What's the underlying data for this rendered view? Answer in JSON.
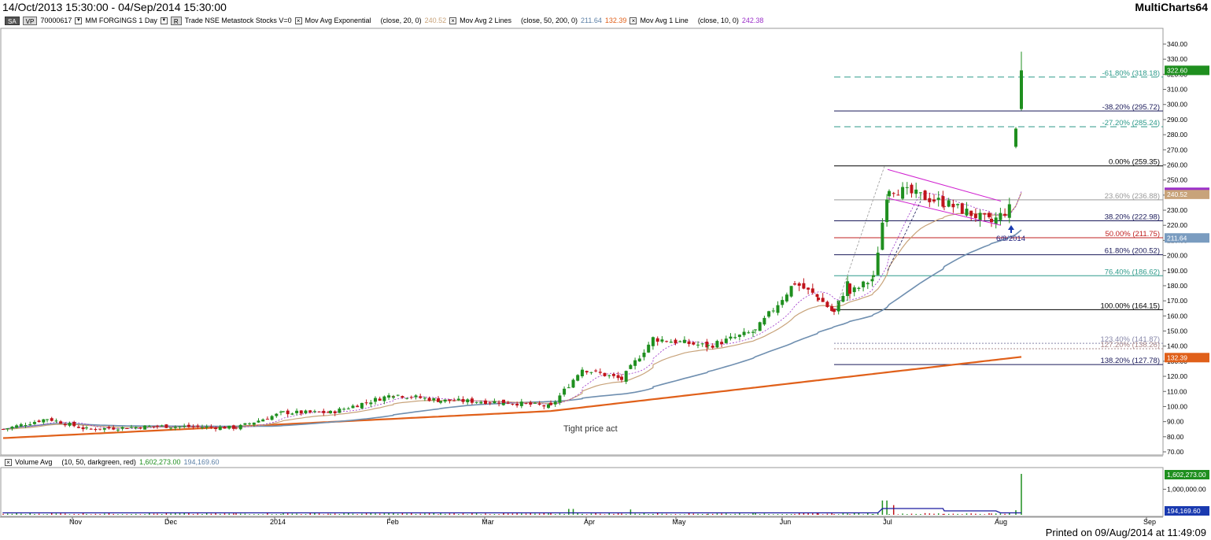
{
  "title": {
    "range": "14/Oct/2013 15:30:00 - 04/Sep/2014 15:30:00",
    "app": "MultiCharts64"
  },
  "legend": {
    "badge_sa": "SA",
    "badge_vp": "VP",
    "symbol_code": "70000617",
    "symbol_name": "MM FORGINGS 1 Day",
    "badge_r": "R",
    "data_source": "Trade NSE Metastock Stocks V=0",
    "ind1_name": "Mov Avg Exponential",
    "ind1_params": "(close, 20, 0)",
    "ind1_value": "240.52",
    "ind2_name": "Mov Avg 2 Lines",
    "ind2_params": "(close, 50, 200, 0)",
    "ind2_value1": "211.64",
    "ind2_value2": "132.39",
    "ind3_name": "Mov Avg 1 Line",
    "ind3_params": "(close, 10, 0)",
    "ind3_value": "242.38",
    "volume_name": "Volume Avg",
    "volume_params": "(10, 50, darkgreen, red)",
    "volume_value1": "1,602,273.00",
    "volume_value2": "194,169.60"
  },
  "printed": "Printed on 09/Aug/2014 at 11:49:09",
  "annotation_date": "6/8/2014",
  "annotation_note": "Tight price act",
  "colors": {
    "up": "#1f8f1f",
    "down": "#c0141c",
    "ema20": "#c8a37a",
    "ma50": "#6f8fb0",
    "ma200": "#e0601a",
    "ma10": "#9b30c8",
    "channel": "#d020d0"
  },
  "chart_data": {
    "type": "candlestick",
    "title": "",
    "xlabel": "",
    "ylabel": "",
    "ylim": [
      70,
      345
    ],
    "y_ticks": [
      "340.00",
      "330.00",
      "320.00",
      "310.00",
      "300.00",
      "290.00",
      "280.00",
      "270.00",
      "260.00",
      "250.00",
      "240.00",
      "230.00",
      "220.00",
      "210.00",
      "200.00",
      "190.00",
      "180.00",
      "170.00",
      "160.00",
      "150.00",
      "140.00",
      "130.00",
      "120.00",
      "110.00",
      "100.00",
      "90.00",
      "80.00",
      "70.00"
    ],
    "x_labels": [
      "Nov",
      "Dec",
      "2014",
      "Feb",
      "Mar",
      "Apr",
      "May",
      "Jun",
      "Jul",
      "Aug",
      "Sep"
    ],
    "price_tags": [
      "322.60",
      "240.52",
      "211.64",
      "132.39"
    ],
    "fib_levels": [
      {
        "label": "-61.80% (318.18)",
        "value": 318.18
      },
      {
        "label": "-38.20% (295.72)",
        "value": 295.72
      },
      {
        "label": "-27.20% (285.24)",
        "value": 285.24
      },
      {
        "label": "0.00% (259.35)",
        "value": 259.35
      },
      {
        "label": "23.60% (236.88)",
        "value": 236.88
      },
      {
        "label": "38.20% (222.98)",
        "value": 222.98
      },
      {
        "label": "50.00% (211.75)",
        "value": 211.75
      },
      {
        "label": "61.80% (200.52)",
        "value": 200.52
      },
      {
        "label": "76.40% (186.62)",
        "value": 186.62
      },
      {
        "label": "100.00% (164.15)",
        "value": 164.15
      },
      {
        "label": "123.40% (141.87)",
        "value": 141.87
      },
      {
        "label": "127.20% (138.26)",
        "value": 138.26
      },
      {
        "label": "138.20% (127.78)",
        "value": 127.78
      }
    ],
    "volume": {
      "y_ticks": [
        "1,000,000.00"
      ],
      "tags": [
        "1,602,273.00",
        "194,169.60"
      ]
    }
  }
}
